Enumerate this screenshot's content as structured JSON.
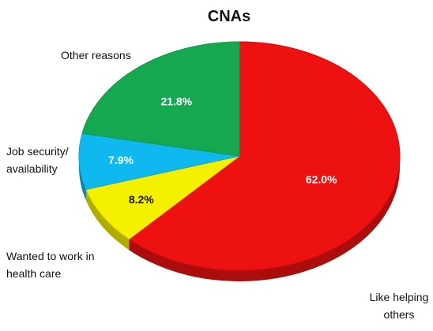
{
  "chart_data": {
    "type": "pie",
    "title": "CNAs",
    "labels": [
      "Like helping others",
      "Wanted to work in health care",
      "Job security/ availability",
      "Other reasons"
    ],
    "values": [
      62.0,
      8.2,
      7.9,
      21.8
    ],
    "value_labels": [
      "62.0%",
      "8.2%",
      "7.9%",
      "21.8%"
    ],
    "colors": [
      "#ee1111",
      "#f4f000",
      "#10b8f0",
      "#16a850"
    ],
    "style": "3d"
  }
}
